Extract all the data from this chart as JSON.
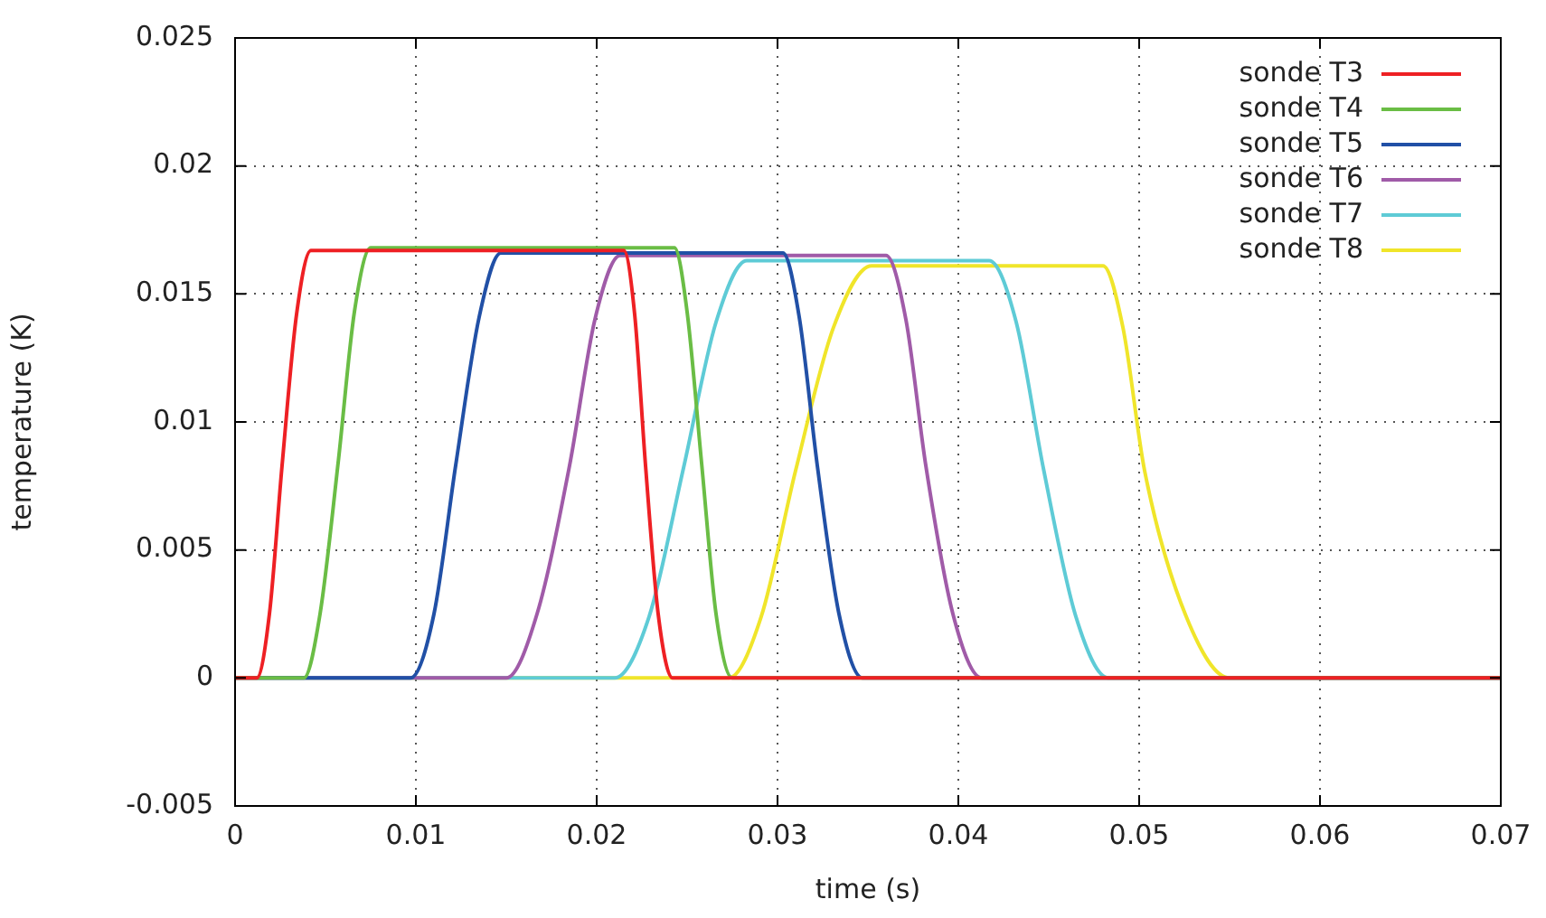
{
  "chart_data": {
    "type": "line",
    "xlabel": "time (s)",
    "ylabel": "temperature (K)",
    "xlim": [
      0,
      0.07
    ],
    "xticks": [
      0,
      0.01,
      0.02,
      0.03,
      0.04,
      0.05,
      0.06,
      0.07
    ],
    "ylim": [
      -0.005,
      0.025
    ],
    "yticks": [
      -0.005,
      0,
      0.005,
      0.01,
      0.015,
      0.02,
      0.025
    ],
    "grid": true,
    "legend": "top right",
    "marker": "none",
    "line_style": "solid",
    "series": [
      {
        "name": "sonde T3",
        "color": "#ee2024",
        "x": [
          0,
          0.0012,
          0.0019,
          0.0026,
          0.0034,
          0.0042,
          0.0215,
          0.0221,
          0.0227,
          0.0234,
          0.0242,
          0.07
        ],
        "values": [
          0,
          0,
          0.0025,
          0.0083,
          0.0142,
          0.0167,
          0.0167,
          0.0142,
          0.0083,
          0.0025,
          0,
          0
        ]
      },
      {
        "name": "sonde T4",
        "color": "#6abd45",
        "x": [
          0,
          0.0038,
          0.0047,
          0.0057,
          0.0066,
          0.0075,
          0.0243,
          0.025,
          0.0258,
          0.0266,
          0.0275,
          0.07
        ],
        "values": [
          0,
          0,
          0.0025,
          0.0084,
          0.0143,
          0.0168,
          0.0168,
          0.0143,
          0.0084,
          0.0025,
          0,
          0
        ]
      },
      {
        "name": "sonde T5",
        "color": "#2150a6",
        "x": [
          0,
          0.0097,
          0.011,
          0.0122,
          0.0135,
          0.0147,
          0.0303,
          0.0312,
          0.0322,
          0.0334,
          0.0347,
          0.07
        ],
        "values": [
          0,
          0,
          0.0025,
          0.0083,
          0.0141,
          0.0166,
          0.0166,
          0.0141,
          0.0083,
          0.0025,
          0,
          0
        ]
      },
      {
        "name": "sonde T6",
        "color": "#a05ba8",
        "x": [
          0,
          0.015,
          0.0167,
          0.0185,
          0.0199,
          0.0213,
          0.036,
          0.0371,
          0.0382,
          0.0397,
          0.0413,
          0.07
        ],
        "values": [
          0,
          0,
          0.0025,
          0.0083,
          0.014,
          0.0165,
          0.0165,
          0.014,
          0.0083,
          0.0025,
          0,
          0
        ]
      },
      {
        "name": "sonde T7",
        "color": "#5ecbd6",
        "x": [
          0,
          0.021,
          0.0229,
          0.0248,
          0.0266,
          0.0283,
          0.0417,
          0.0432,
          0.0447,
          0.0465,
          0.0483,
          0.07
        ],
        "values": [
          0,
          0,
          0.0024,
          0.0082,
          0.0139,
          0.0163,
          0.0163,
          0.0139,
          0.0082,
          0.0024,
          0,
          0
        ]
      },
      {
        "name": "sonde T8",
        "color": "#f0e52a",
        "x": [
          0,
          0.0273,
          0.0291,
          0.031,
          0.0331,
          0.0352,
          0.048,
          0.0491,
          0.0503,
          0.0526,
          0.055,
          0.07
        ],
        "values": [
          0,
          0,
          0.0024,
          0.0081,
          0.0137,
          0.0161,
          0.0161,
          0.0137,
          0.0081,
          0.0024,
          0,
          0
        ]
      }
    ]
  }
}
